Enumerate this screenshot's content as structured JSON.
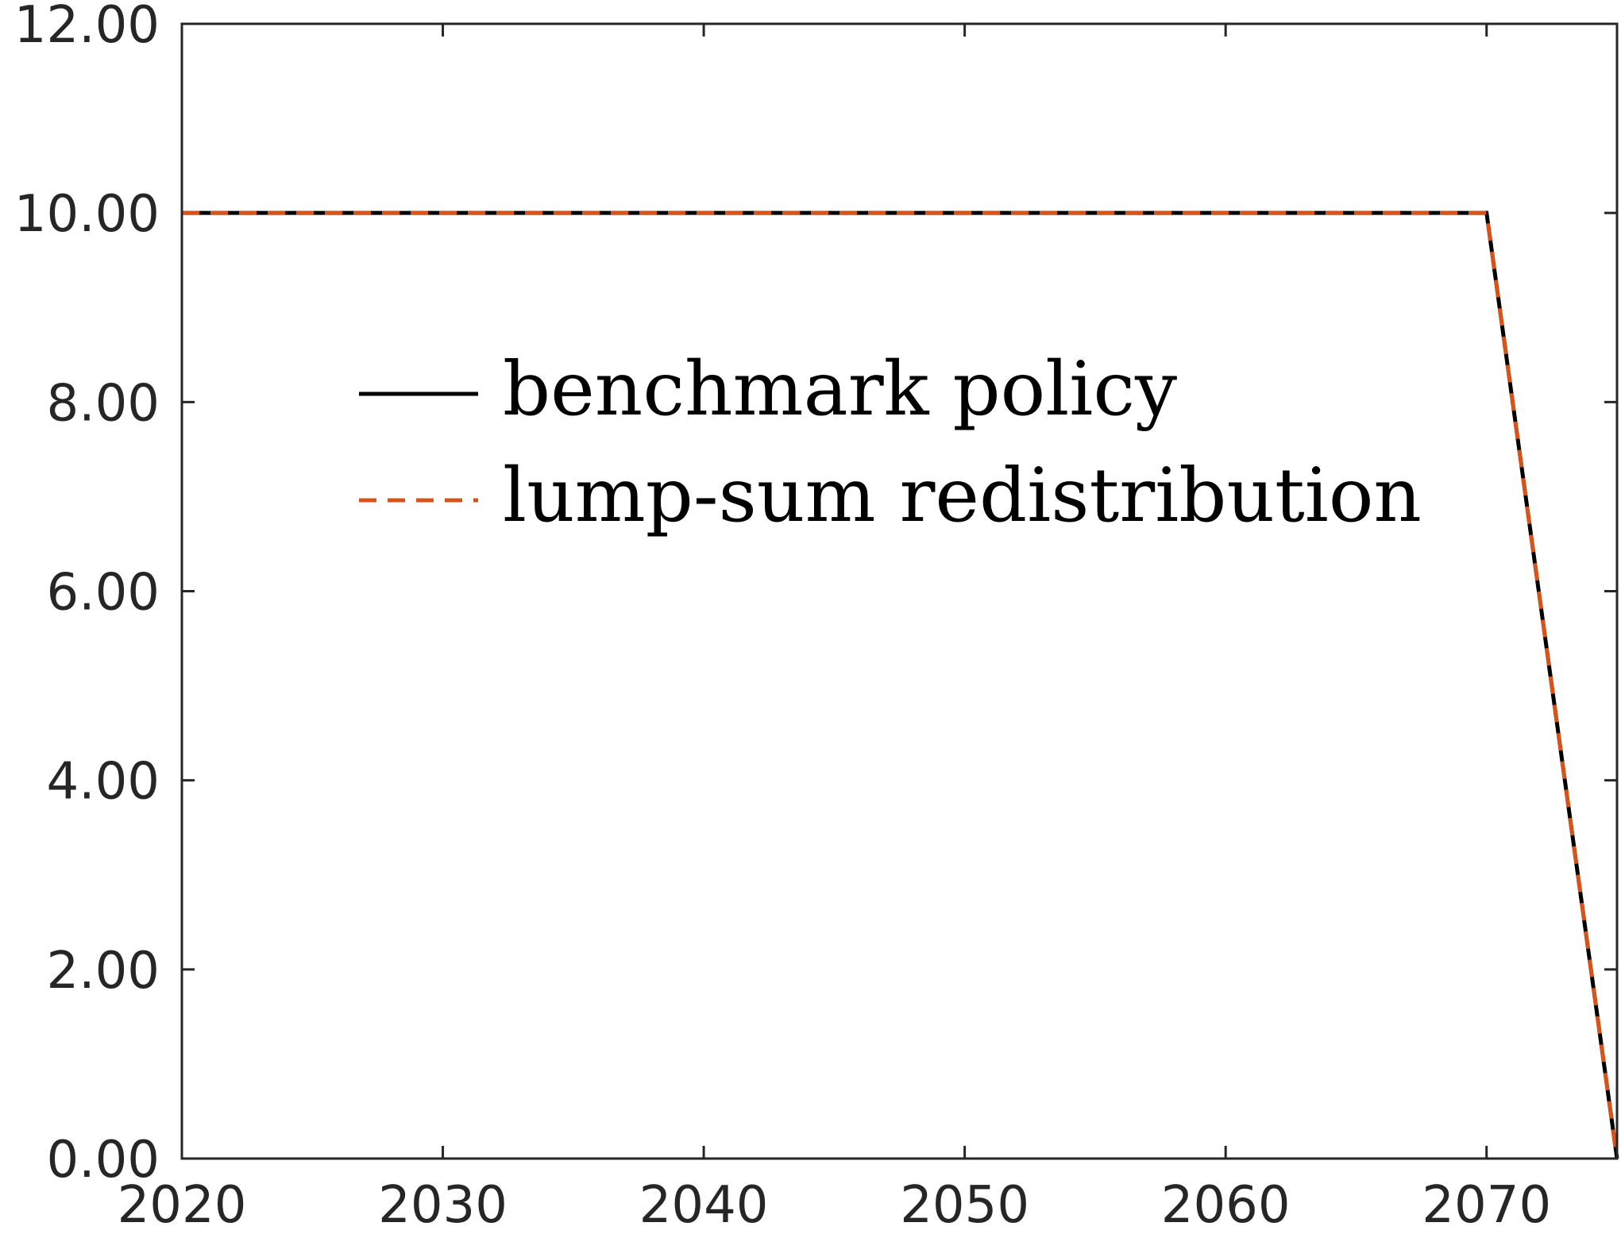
{
  "chart_data": {
    "type": "line",
    "title": "",
    "xlabel": "",
    "ylabel": "",
    "xlim": [
      2020,
      2075
    ],
    "ylim": [
      0,
      12
    ],
    "x_ticks": [
      2020,
      2030,
      2040,
      2050,
      2060,
      2070
    ],
    "x_tick_labels": [
      "2020",
      "2030",
      "2040",
      "2050",
      "2060",
      "2070"
    ],
    "y_ticks": [
      0,
      2,
      4,
      6,
      8,
      10,
      12
    ],
    "y_tick_labels": [
      "0.00",
      "2.00",
      "4.00",
      "6.00",
      "8.00",
      "10.00",
      "12.00"
    ],
    "grid": false,
    "legend_position": "upper-left-center",
    "series": [
      {
        "name": "benchmark policy",
        "color": "#000000",
        "line_style": "solid",
        "x": [
          2020,
          2070,
          2075
        ],
        "y": [
          10,
          10,
          0
        ]
      },
      {
        "name": "lump-sum redistribution",
        "color": "#d95319",
        "line_style": "dashed",
        "x": [
          2020,
          2070,
          2075
        ],
        "y": [
          10,
          10,
          0
        ]
      }
    ]
  }
}
